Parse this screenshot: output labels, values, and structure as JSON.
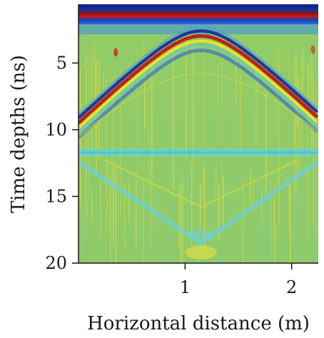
{
  "chart_data": {
    "type": "heatmap",
    "description_kind": "GPR radargram (B-scan) with hyperbolic reflection",
    "title": "",
    "xlabel": "Horizontal distance (m)",
    "ylabel": "Time depths (ns)",
    "xlim": [
      0.0,
      2.25
    ],
    "ylim": [
      0.6,
      20
    ],
    "y_inverted": true,
    "xticks": [
      1,
      2
    ],
    "xtick_labels": [
      "1",
      "2"
    ],
    "yticks": [
      5,
      10,
      15,
      20
    ],
    "ytick_labels": [
      "5",
      "10",
      "15",
      "20"
    ],
    "colormap": "jet",
    "colors": {
      "background": "#8ec963",
      "direct_wave_dark": "#102a8c",
      "direct_wave_red": "#b01515",
      "hyperbola_red": "#c01818",
      "hyperbola_yellow": "#f2e61c",
      "hyperbola_blue": "#1a4fd6",
      "cyan": "#5fd3e0"
    },
    "features": [
      {
        "name": "direct wave band",
        "time_ns": [
          0.7,
          2.0
        ]
      },
      {
        "name": "hyperbola apex",
        "x_m": 1.15,
        "time_ns": 2.6
      },
      {
        "name": "horizontal reflector",
        "time_ns": 11.7
      },
      {
        "name": "lower inverted reflection apex",
        "x_m": 1.15,
        "time_ns": 18.5
      }
    ]
  }
}
